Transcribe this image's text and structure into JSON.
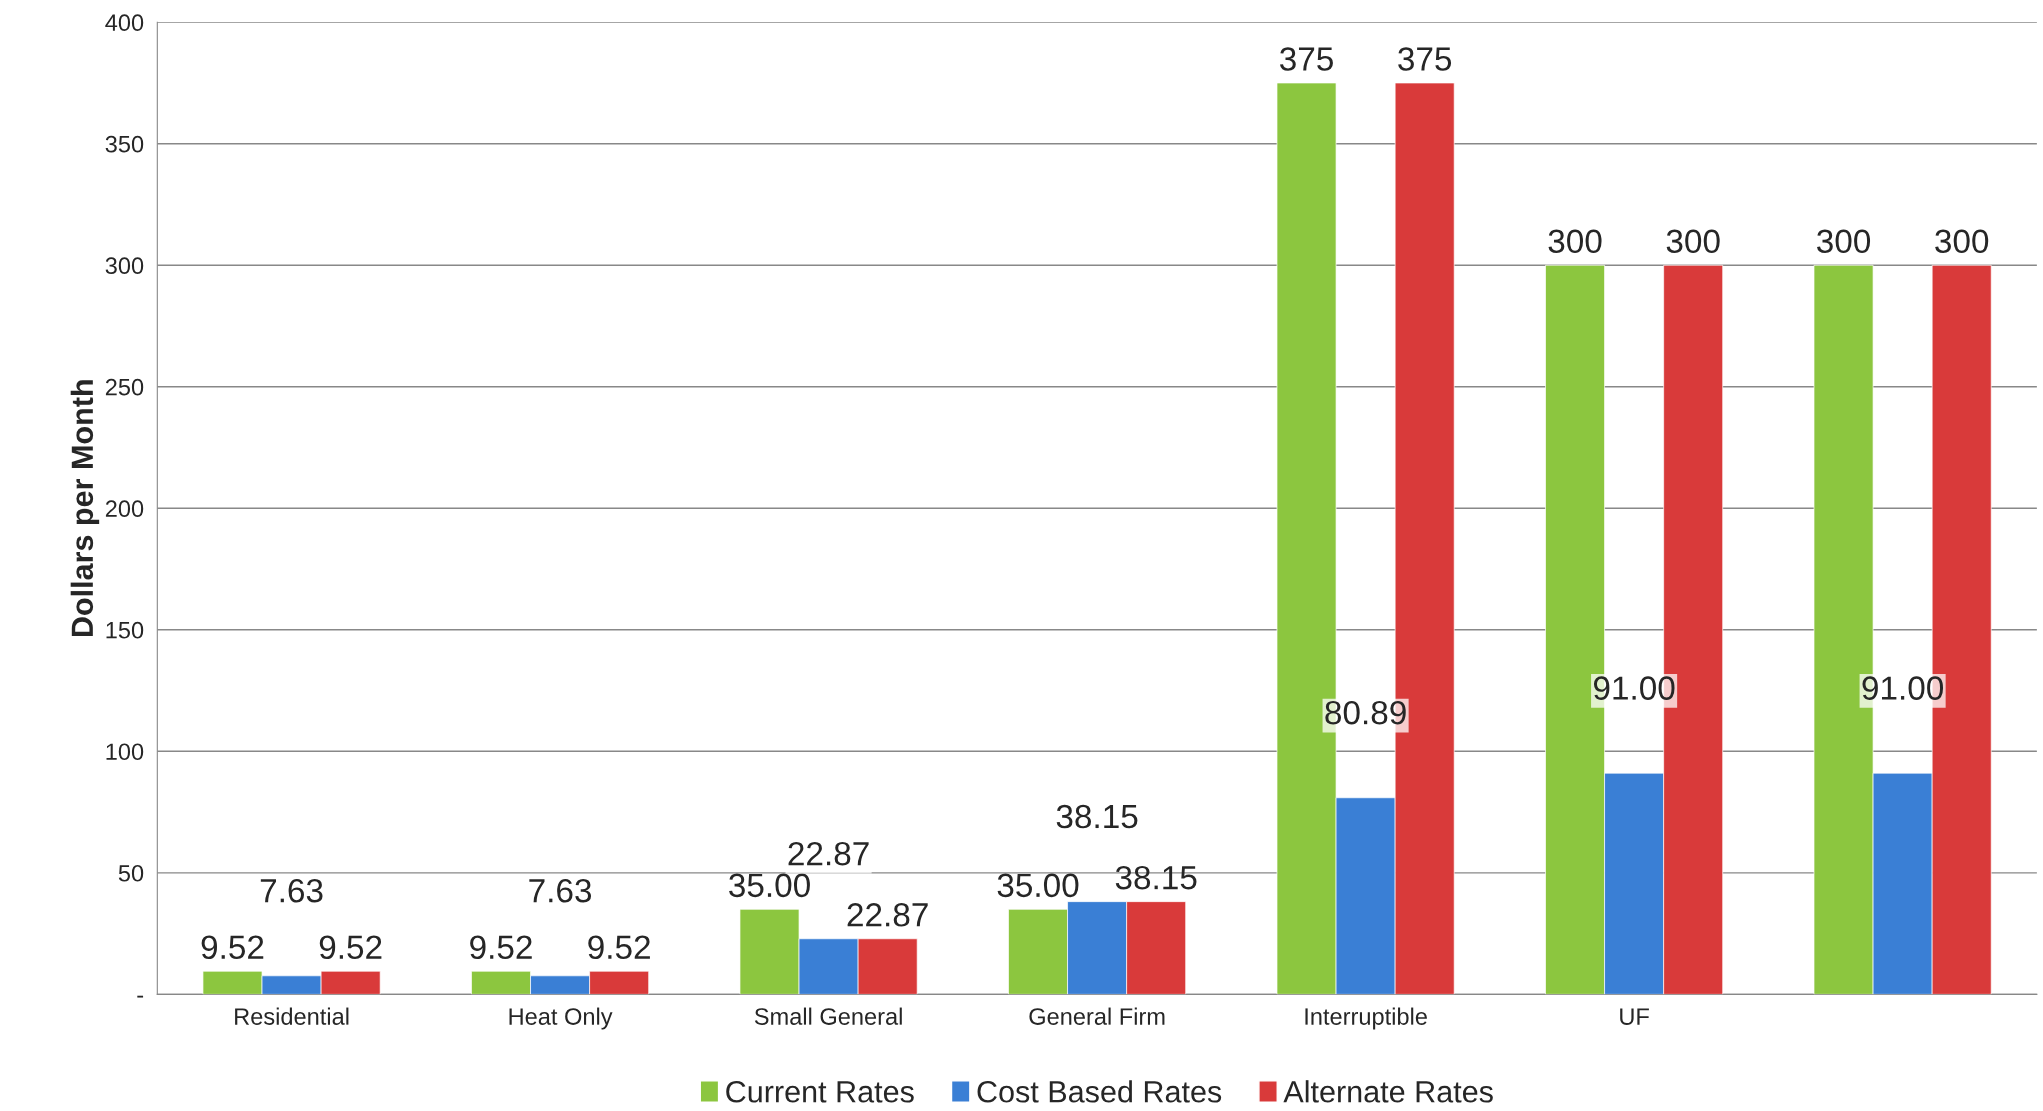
{
  "chart_data": {
    "type": "bar",
    "ylabel": "Dollars per Month",
    "categories": [
      "Residential",
      "Heat Only",
      "Small General",
      "General Firm",
      "Interruptible",
      "UF",
      null
    ],
    "series": [
      {
        "name": "Current Rates",
        "color": "#8cc63f",
        "values": [
          9.52,
          9.52,
          35.0,
          35.0,
          375,
          300,
          300
        ],
        "value_labels": [
          "9.52",
          "9.52",
          "35.00",
          "35.00",
          "375",
          "300",
          "300"
        ]
      },
      {
        "name": "Cost Based Rates",
        "color": "#3a7fd5",
        "values": [
          7.63,
          7.63,
          22.87,
          38.15,
          80.89,
          91.0,
          91.0
        ],
        "value_labels": [
          "7.63",
          "7.63",
          "22.87",
          "38.15",
          "80.89",
          "91.00",
          "91.00"
        ]
      },
      {
        "name": "Alternate Rates",
        "color": "#d93a3a",
        "values": [
          9.52,
          9.52,
          22.87,
          38.15,
          375,
          300,
          300
        ],
        "value_labels": [
          "9.52",
          "9.52",
          "22.87",
          "38.15",
          "375",
          "300",
          "300"
        ]
      }
    ],
    "ylim": [
      0,
      400
    ],
    "yticks": [
      {
        "value": 0,
        "label": "-"
      },
      50,
      100,
      150,
      200,
      250,
      300,
      350,
      400
    ],
    "grid": "y",
    "legend": "bottom"
  }
}
